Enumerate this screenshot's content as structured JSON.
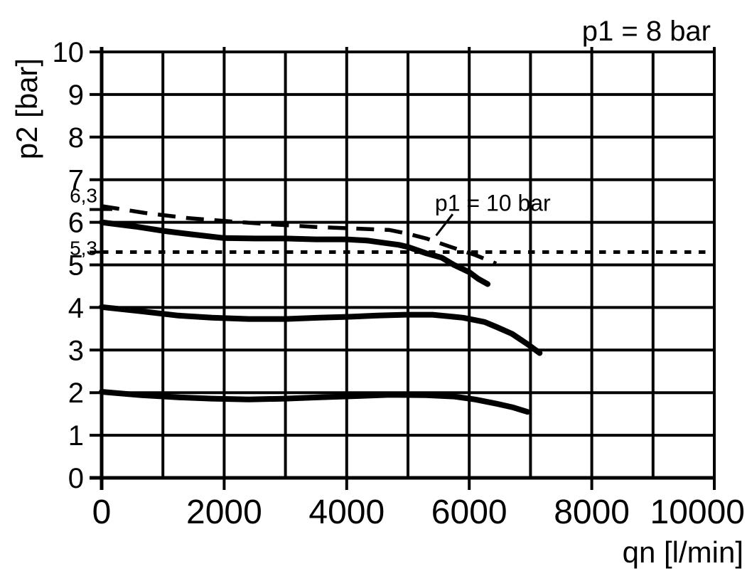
{
  "colors": {
    "foreground": "#000000",
    "background": "#ffffff"
  },
  "chart_data": {
    "type": "line",
    "title": "p1 = 8 bar",
    "xlabel": "qn [l/min]",
    "ylabel": "p2 [bar]",
    "xlim": [
      0,
      10000
    ],
    "ylim": [
      0,
      10
    ],
    "grid": true,
    "legend_position": "none",
    "x_major_ticks": [
      0,
      2000,
      4000,
      6000,
      8000,
      10000
    ],
    "x_grid_step": 1000,
    "y_major_ticks": [
      0,
      1,
      2,
      3,
      4,
      5,
      6,
      7,
      8,
      9,
      10
    ],
    "y_special_ticks": [
      {
        "value": 6.3,
        "label": "6,3"
      },
      {
        "value": 5.3,
        "label": "5,3"
      }
    ],
    "reference_line": {
      "y": 5.3,
      "style": "dotted"
    },
    "annotation": {
      "text": "p1 = 10 bar",
      "x": 5440,
      "y": 6.27,
      "leader": [
        [
          5730,
          6.19
        ],
        [
          5460,
          5.69
        ]
      ]
    },
    "series": [
      {
        "name": "p1-10-bar-dashed",
        "style": "dashed",
        "points": [
          [
            0,
            6.38
          ],
          [
            700,
            6.22
          ],
          [
            1400,
            6.1
          ],
          [
            2100,
            6.02
          ],
          [
            2800,
            5.95
          ],
          [
            3500,
            5.89
          ],
          [
            4200,
            5.85
          ],
          [
            4700,
            5.82
          ],
          [
            5000,
            5.73
          ],
          [
            5300,
            5.62
          ],
          [
            5700,
            5.42
          ],
          [
            6100,
            5.23
          ],
          [
            6440,
            5.03
          ]
        ]
      },
      {
        "name": "p1-8-bar-outlet-6",
        "style": "solid",
        "points": [
          [
            0,
            6.0
          ],
          [
            550,
            5.9
          ],
          [
            1000,
            5.8
          ],
          [
            1450,
            5.72
          ],
          [
            2000,
            5.63
          ],
          [
            2500,
            5.62
          ],
          [
            3000,
            5.62
          ],
          [
            3500,
            5.6
          ],
          [
            4000,
            5.6
          ],
          [
            4350,
            5.57
          ],
          [
            4600,
            5.52
          ],
          [
            4850,
            5.47
          ],
          [
            5000,
            5.42
          ],
          [
            5300,
            5.27
          ],
          [
            5550,
            5.17
          ],
          [
            5750,
            5.0
          ],
          [
            6000,
            4.83
          ],
          [
            6150,
            4.67
          ],
          [
            6300,
            4.55
          ]
        ]
      },
      {
        "name": "p1-8-bar-outlet-4",
        "style": "solid",
        "points": [
          [
            0,
            4.01
          ],
          [
            650,
            3.91
          ],
          [
            1250,
            3.81
          ],
          [
            1800,
            3.76
          ],
          [
            2400,
            3.73
          ],
          [
            3000,
            3.73
          ],
          [
            3550,
            3.76
          ],
          [
            4000,
            3.78
          ],
          [
            4500,
            3.81
          ],
          [
            4950,
            3.83
          ],
          [
            5400,
            3.83
          ],
          [
            5900,
            3.76
          ],
          [
            6250,
            3.66
          ],
          [
            6450,
            3.54
          ],
          [
            6700,
            3.38
          ],
          [
            6950,
            3.14
          ],
          [
            7150,
            2.93
          ]
        ]
      },
      {
        "name": "p1-8-bar-outlet-2",
        "style": "solid",
        "points": [
          [
            0,
            2.02
          ],
          [
            650,
            1.94
          ],
          [
            1250,
            1.89
          ],
          [
            1800,
            1.86
          ],
          [
            2400,
            1.84
          ],
          [
            3000,
            1.86
          ],
          [
            3550,
            1.89
          ],
          [
            4150,
            1.92
          ],
          [
            4700,
            1.95
          ],
          [
            5300,
            1.94
          ],
          [
            5750,
            1.91
          ],
          [
            6100,
            1.84
          ],
          [
            6450,
            1.74
          ],
          [
            6700,
            1.66
          ],
          [
            6950,
            1.55
          ]
        ]
      }
    ]
  }
}
